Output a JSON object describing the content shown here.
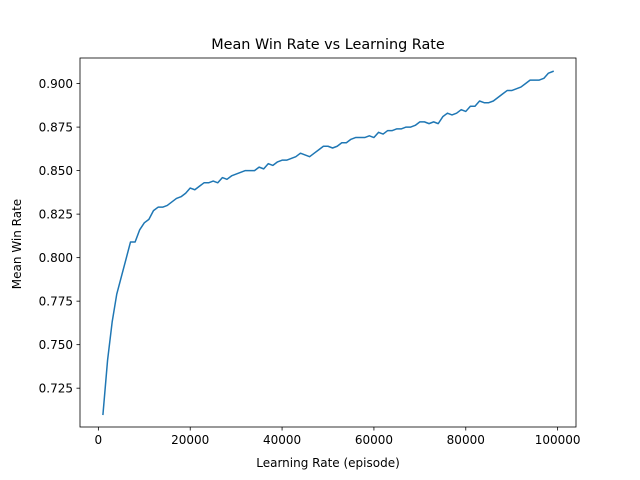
{
  "chart_data": {
    "type": "line",
    "title": "Mean Win Rate vs Learning Rate",
    "xlabel": "Learning Rate (episode)",
    "ylabel": "Mean Win Rate",
    "xlim": [
      -4000,
      104000
    ],
    "ylim": [
      0.7027,
      0.9147
    ],
    "xticks": [
      0,
      20000,
      40000,
      60000,
      80000,
      100000
    ],
    "xtick_labels": [
      "0",
      "20000",
      "40000",
      "60000",
      "80000",
      "100000"
    ],
    "yticks": [
      0.725,
      0.75,
      0.775,
      0.8,
      0.825,
      0.85,
      0.875,
      0.9
    ],
    "ytick_labels": [
      "0.725",
      "0.750",
      "0.775",
      "0.800",
      "0.825",
      "0.850",
      "0.875",
      "0.900"
    ],
    "grid": false,
    "series": [
      {
        "color": "#1f77b4",
        "x": [
          1000,
          2000,
          3000,
          4000,
          5000,
          6000,
          7000,
          8000,
          9000,
          10000,
          11000,
          12000,
          13000,
          14000,
          15000,
          16000,
          17000,
          18000,
          19000,
          20000,
          21000,
          22000,
          23000,
          24000,
          25000,
          26000,
          27000,
          28000,
          29000,
          30000,
          31000,
          32000,
          33000,
          34000,
          35000,
          36000,
          37000,
          38000,
          39000,
          40000,
          41000,
          42000,
          43000,
          44000,
          45000,
          46000,
          47000,
          48000,
          49000,
          50000,
          51000,
          52000,
          53000,
          54000,
          55000,
          56000,
          57000,
          58000,
          59000,
          60000,
          61000,
          62000,
          63000,
          64000,
          65000,
          66000,
          67000,
          68000,
          69000,
          70000,
          71000,
          72000,
          73000,
          74000,
          75000,
          76000,
          77000,
          78000,
          79000,
          80000,
          81000,
          82000,
          83000,
          84000,
          85000,
          86000,
          87000,
          88000,
          89000,
          90000,
          91000,
          92000,
          93000,
          94000,
          95000,
          96000,
          97000,
          98000,
          99000
        ],
        "y": [
          0.71,
          0.741,
          0.763,
          0.779,
          0.789,
          0.799,
          0.809,
          0.809,
          0.816,
          0.82,
          0.822,
          0.827,
          0.829,
          0.829,
          0.83,
          0.832,
          0.834,
          0.835,
          0.837,
          0.84,
          0.839,
          0.841,
          0.843,
          0.843,
          0.844,
          0.843,
          0.846,
          0.845,
          0.847,
          0.848,
          0.849,
          0.85,
          0.85,
          0.85,
          0.852,
          0.851,
          0.854,
          0.853,
          0.855,
          0.856,
          0.856,
          0.857,
          0.858,
          0.86,
          0.859,
          0.858,
          0.86,
          0.862,
          0.864,
          0.864,
          0.863,
          0.864,
          0.866,
          0.866,
          0.868,
          0.869,
          0.869,
          0.869,
          0.87,
          0.869,
          0.872,
          0.871,
          0.873,
          0.873,
          0.874,
          0.874,
          0.875,
          0.875,
          0.876,
          0.878,
          0.878,
          0.877,
          0.878,
          0.877,
          0.881,
          0.883,
          0.882,
          0.883,
          0.885,
          0.884,
          0.887,
          0.887,
          0.89,
          0.889,
          0.889,
          0.89,
          0.892,
          0.894,
          0.896,
          0.896,
          0.897,
          0.898,
          0.9,
          0.902,
          0.902,
          0.902,
          0.903,
          0.906,
          0.907
        ]
      }
    ]
  }
}
